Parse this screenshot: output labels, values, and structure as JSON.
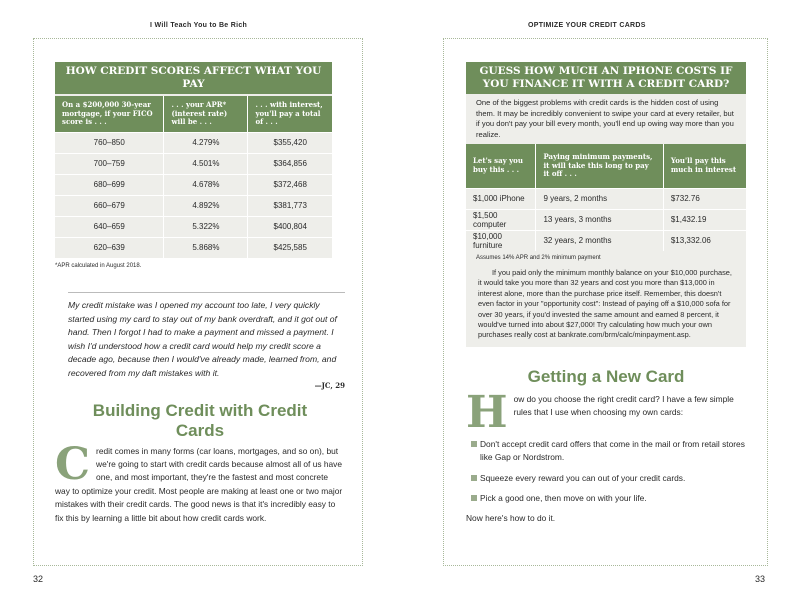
{
  "left": {
    "running_head": "I Will Teach You to Be Rich",
    "page_number": "32",
    "table": {
      "title": "HOW CREDIT SCORES AFFECT WHAT YOU PAY",
      "headers": [
        "On a $200,000 30-year mortgage, if your FICO score is . . .",
        ". . . your APR* (interest rate) will be . . .",
        ". . . with interest, you'll  pay a total of . . ."
      ],
      "rows": [
        [
          "760–850",
          "4.279%",
          "$355,420"
        ],
        [
          "700–759",
          "4.501%",
          "$364,856"
        ],
        [
          "680–699",
          "4.678%",
          "$372,468"
        ],
        [
          "660–679",
          "4.892%",
          "$381,773"
        ],
        [
          "640–659",
          "5.322%",
          "$400,804"
        ],
        [
          "620–639",
          "5.868%",
          "$425,585"
        ]
      ],
      "footnote": "*APR calculated in August 2018."
    },
    "quote": {
      "text": "My credit mistake was I opened my account too late, I very quickly started using my card to stay out of my bank overdraft, and it got out of hand. Then I forgot I had to make a payment and missed a payment. I wish I'd understood how a credit card would help my credit score a decade ago, because then I would've already made, learned from, and recovered from my daft mistakes with it.",
      "attribution": "—JC, 29"
    },
    "heading": "Building Credit with Credit Cards",
    "drop_cap": "C",
    "body": "redit comes in many forms (car loans, mortgages, and so on), but we're going to start with credit cards because almost all of us have one, and most important, they're the fastest and most concrete way to optimize your credit. Most people are making at least one or two major mistakes with their credit cards. The good news is that it's incredibly easy to fix this by learning a little bit about how credit cards work."
  },
  "right": {
    "running_head": "OPTIMIZE YOUR CREDIT CARDS",
    "page_number": "33",
    "sidebar": {
      "title": "GUESS HOW MUCH AN IPHONE COSTS IF YOU FINANCE IT WITH A CREDIT CARD?",
      "intro": "One of the biggest problems with credit cards is the hidden cost of using them. It may be incredibly convenient to swipe your card at every retailer, but if you don't pay your bill every month, you'll end up owing way more than you realize.",
      "headers": [
        "Let's say you buy this . . .",
        "Paying minimum payments, it will take this long to pay it off . . .",
        "You'll pay this much in interest"
      ],
      "rows": [
        [
          "$1,000 iPhone",
          "9 years, 2 months",
          "$732.76"
        ],
        [
          "$1,500 computer",
          "13 years, 3 months",
          "$1,432.19"
        ],
        [
          "$10,000 furniture",
          "32 years, 2 months",
          "$13,332.06"
        ]
      ],
      "footnote": "Assumes 14% APR and 2% minimum payment",
      "paragraph": "If you paid only the minimum monthly balance on your $10,000 purchase, it would take you more than 32 years and cost you more than $13,000 in interest alone, more than the purchase price itself. Remember, this doesn't even factor in your \"opportunity cost\": Instead of paying off a $10,000 sofa for over 30 years, if you'd invested the same amount and earned 8 percent, it would've turned into about $27,000! Try calculating how much your own purchases really cost at bankrate.com/brm/calc/minpayment.asp."
    },
    "heading": "Getting a New Card",
    "drop_cap": "H",
    "body": "ow do you choose the right credit card? I have a few simple rules that I use when choosing my own cards:",
    "bullets": [
      "Don't accept credit card offers that come in the mail or from retail stores like Gap or Nordstrom.",
      "Squeeze every reward you can out of your credit cards.",
      "Pick a good one, then move on with your life."
    ],
    "closing": "Now here's how to do it."
  },
  "colors": {
    "accent": "#6f8e5b",
    "panel": "#eeeeea"
  }
}
